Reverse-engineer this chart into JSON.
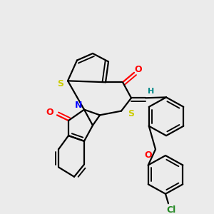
{
  "bg": "#ebebeb",
  "atom_colors": {
    "S": "#cccc00",
    "N": "#0000ff",
    "O": "#ff0000",
    "Cl": "#228822",
    "H": "#008888",
    "C": "#000000"
  },
  "lw": 1.6,
  "lw2": 1.0
}
